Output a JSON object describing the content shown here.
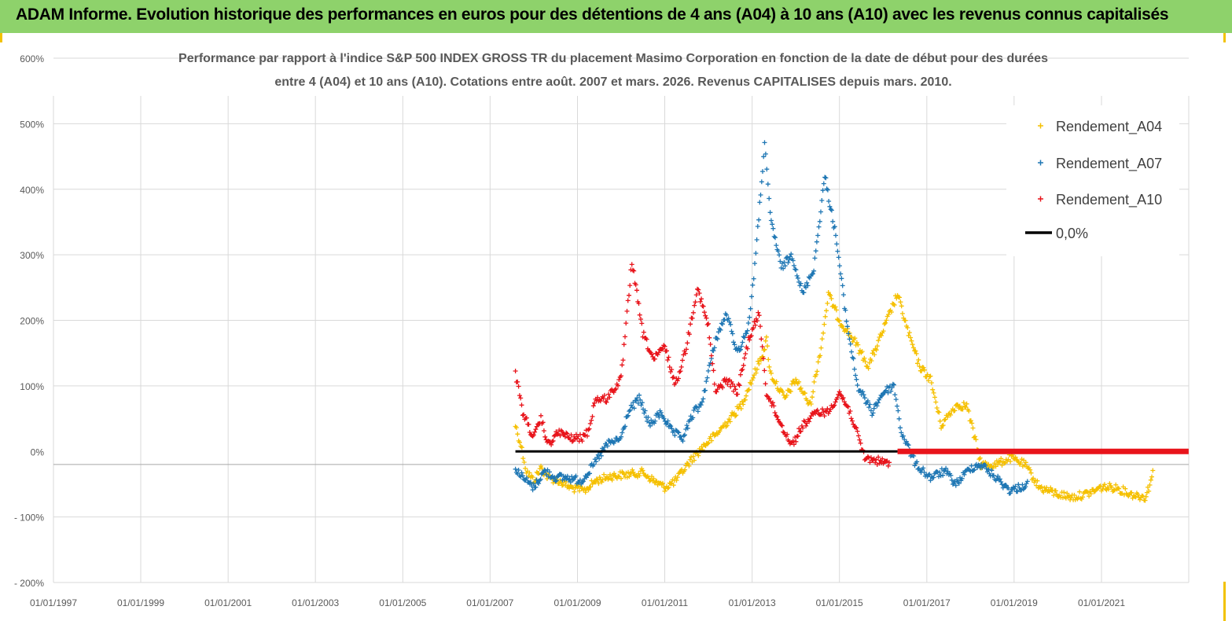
{
  "banner": {
    "title": "ADAM Informe. Evolution historique des performances en euros pour des détentions de 4 ans (A04) à 10 ans (A10) avec les revenus connus capitalisés"
  },
  "chart_data": {
    "type": "scatter",
    "title_line1": "Performance par rapport à l'indice S&P 500 INDEX GROSS TR  du placement Masimo Corporation en fonction de la date de début pour des durées",
    "title_line2": "entre 4 (A04) et 10 ans (A10). Cotations entre août. 2007 et mars. 2026. Revenus CAPITALISES depuis mars. 2010.",
    "ylim": [
      -200,
      600
    ],
    "xlim": [
      "1997-01-01",
      "2023-01-01"
    ],
    "y_ticks": [
      "600%",
      "500%",
      "400%",
      "300%",
      "200%",
      "100%",
      "0%",
      "- 100%",
      "- 200%"
    ],
    "x_ticks": [
      "01/01/1997",
      "01/01/1999",
      "01/01/2001",
      "01/01/2003",
      "01/01/2005",
      "01/01/2007",
      "01/01/2009",
      "01/01/2011",
      "01/01/2013",
      "01/01/2015",
      "01/01/2017",
      "01/01/2019",
      "01/01/2021"
    ],
    "grid": true,
    "legend_position": "top-right",
    "series": [
      {
        "name": "Rendement_A04",
        "color": "#f5c000",
        "points": [
          [
            "2007-08-01",
            40
          ],
          [
            "2007-09-15",
            10
          ],
          [
            "2007-11-01",
            -30
          ],
          [
            "2008-01-01",
            -45
          ],
          [
            "2008-03-01",
            -25
          ],
          [
            "2008-05-01",
            -40
          ],
          [
            "2008-08-01",
            -45
          ],
          [
            "2008-11-01",
            -55
          ],
          [
            "2009-03-01",
            -60
          ],
          [
            "2009-06-01",
            -45
          ],
          [
            "2009-10-01",
            -38
          ],
          [
            "2010-03-01",
            -35
          ],
          [
            "2010-07-01",
            -32
          ],
          [
            "2010-10-01",
            -45
          ],
          [
            "2011-01-01",
            -55
          ],
          [
            "2011-04-01",
            -45
          ],
          [
            "2011-08-01",
            -15
          ],
          [
            "2011-12-01",
            10
          ],
          [
            "2012-03-01",
            25
          ],
          [
            "2012-07-01",
            50
          ],
          [
            "2012-10-01",
            70
          ],
          [
            "2013-01-01",
            110
          ],
          [
            "2013-04-01",
            150
          ],
          [
            "2013-05-01",
            170
          ],
          [
            "2013-06-01",
            120
          ],
          [
            "2013-10-01",
            80
          ],
          [
            "2014-01-01",
            110
          ],
          [
            "2014-05-01",
            70
          ],
          [
            "2014-08-01",
            160
          ],
          [
            "2014-10-01",
            240
          ],
          [
            "2015-01-01",
            200
          ],
          [
            "2015-05-01",
            170
          ],
          [
            "2015-09-01",
            130
          ],
          [
            "2015-12-01",
            170
          ],
          [
            "2016-05-01",
            240
          ],
          [
            "2016-08-01",
            180
          ],
          [
            "2016-11-01",
            130
          ],
          [
            "2017-02-01",
            110
          ],
          [
            "2017-05-01",
            40
          ],
          [
            "2017-09-01",
            70
          ],
          [
            "2017-12-01",
            70
          ],
          [
            "2018-04-01",
            -20
          ],
          [
            "2018-08-01",
            -20
          ],
          [
            "2018-12-01",
            -10
          ],
          [
            "2019-04-01",
            -20
          ],
          [
            "2019-08-01",
            -55
          ],
          [
            "2020-01-01",
            -65
          ],
          [
            "2020-05-01",
            -70
          ],
          [
            "2020-09-01",
            -65
          ],
          [
            "2021-01-01",
            -55
          ],
          [
            "2021-05-01",
            -55
          ],
          [
            "2021-09-01",
            -65
          ],
          [
            "2022-01-01",
            -70
          ],
          [
            "2022-02-01",
            -55
          ],
          [
            "2022-03-15",
            -28
          ]
        ]
      },
      {
        "name": "Rendement_A07",
        "color": "#1f77b4",
        "points": [
          [
            "2007-08-01",
            -25
          ],
          [
            "2007-10-01",
            -40
          ],
          [
            "2008-01-01",
            -55
          ],
          [
            "2008-04-01",
            -30
          ],
          [
            "2008-07-01",
            -40
          ],
          [
            "2008-10-01",
            -40
          ],
          [
            "2009-02-01",
            -45
          ],
          [
            "2009-05-01",
            -25
          ],
          [
            "2009-09-01",
            10
          ],
          [
            "2010-01-01",
            20
          ],
          [
            "2010-03-01",
            60
          ],
          [
            "2010-06-01",
            80
          ],
          [
            "2010-09-01",
            40
          ],
          [
            "2010-12-01",
            60
          ],
          [
            "2011-03-01",
            30
          ],
          [
            "2011-06-01",
            20
          ],
          [
            "2011-09-01",
            60
          ],
          [
            "2011-11-01",
            70
          ],
          [
            "2012-03-01",
            170
          ],
          [
            "2012-06-01",
            210
          ],
          [
            "2012-09-01",
            150
          ],
          [
            "2012-12-01",
            190
          ],
          [
            "2013-02-01",
            300
          ],
          [
            "2013-04-15",
            470
          ],
          [
            "2013-06-01",
            360
          ],
          [
            "2013-09-01",
            280
          ],
          [
            "2013-12-01",
            300
          ],
          [
            "2014-03-01",
            240
          ],
          [
            "2014-06-01",
            280
          ],
          [
            "2014-09-01",
            420
          ],
          [
            "2014-12-01",
            330
          ],
          [
            "2015-03-01",
            200
          ],
          [
            "2015-06-01",
            100
          ],
          [
            "2015-10-01",
            60
          ],
          [
            "2016-01-01",
            90
          ],
          [
            "2016-04-01",
            100
          ],
          [
            "2016-06-01",
            30
          ],
          [
            "2016-10-01",
            -20
          ],
          [
            "2017-02-01",
            -40
          ],
          [
            "2017-06-01",
            -30
          ],
          [
            "2017-09-01",
            -50
          ],
          [
            "2018-01-01",
            -25
          ],
          [
            "2018-04-01",
            -20
          ],
          [
            "2018-08-01",
            -40
          ],
          [
            "2018-12-01",
            -60
          ],
          [
            "2019-05-01",
            -50
          ]
        ]
      },
      {
        "name": "Rendement_A10",
        "color": "#e8141b",
        "points": [
          [
            "2007-08-01",
            120
          ],
          [
            "2007-10-01",
            60
          ],
          [
            "2008-01-01",
            20
          ],
          [
            "2008-03-01",
            50
          ],
          [
            "2008-05-01",
            10
          ],
          [
            "2008-08-01",
            30
          ],
          [
            "2008-11-01",
            20
          ],
          [
            "2009-02-01",
            20
          ],
          [
            "2009-04-01",
            30
          ],
          [
            "2009-06-01",
            80
          ],
          [
            "2009-09-01",
            80
          ],
          [
            "2010-01-01",
            110
          ],
          [
            "2010-04-01",
            290
          ],
          [
            "2010-07-01",
            180
          ],
          [
            "2010-10-01",
            140
          ],
          [
            "2011-01-01",
            160
          ],
          [
            "2011-04-01",
            100
          ],
          [
            "2011-07-01",
            160
          ],
          [
            "2011-10-01",
            250
          ],
          [
            "2012-01-01",
            190
          ],
          [
            "2012-03-01",
            90
          ],
          [
            "2012-06-01",
            110
          ],
          [
            "2012-09-01",
            90
          ],
          [
            "2012-12-01",
            170
          ],
          [
            "2013-03-01",
            210
          ],
          [
            "2013-05-01",
            90
          ],
          [
            "2013-09-01",
            40
          ],
          [
            "2013-12-01",
            10
          ],
          [
            "2014-03-01",
            40
          ],
          [
            "2014-07-01",
            60
          ],
          [
            "2014-10-01",
            60
          ],
          [
            "2015-01-01",
            90
          ],
          [
            "2015-04-01",
            60
          ],
          [
            "2015-08-01",
            -10
          ],
          [
            "2015-12-01",
            -15
          ],
          [
            "2016-03-01",
            -20
          ]
        ]
      },
      {
        "name": "0,0%",
        "color": "#000000",
        "points": [
          [
            "2007-08-01",
            0
          ],
          [
            "2016-05-01",
            0
          ]
        ]
      }
    ],
    "flat_red_segment": {
      "start": "2016-05-01",
      "end": "2022-12-31",
      "value": 0
    }
  }
}
